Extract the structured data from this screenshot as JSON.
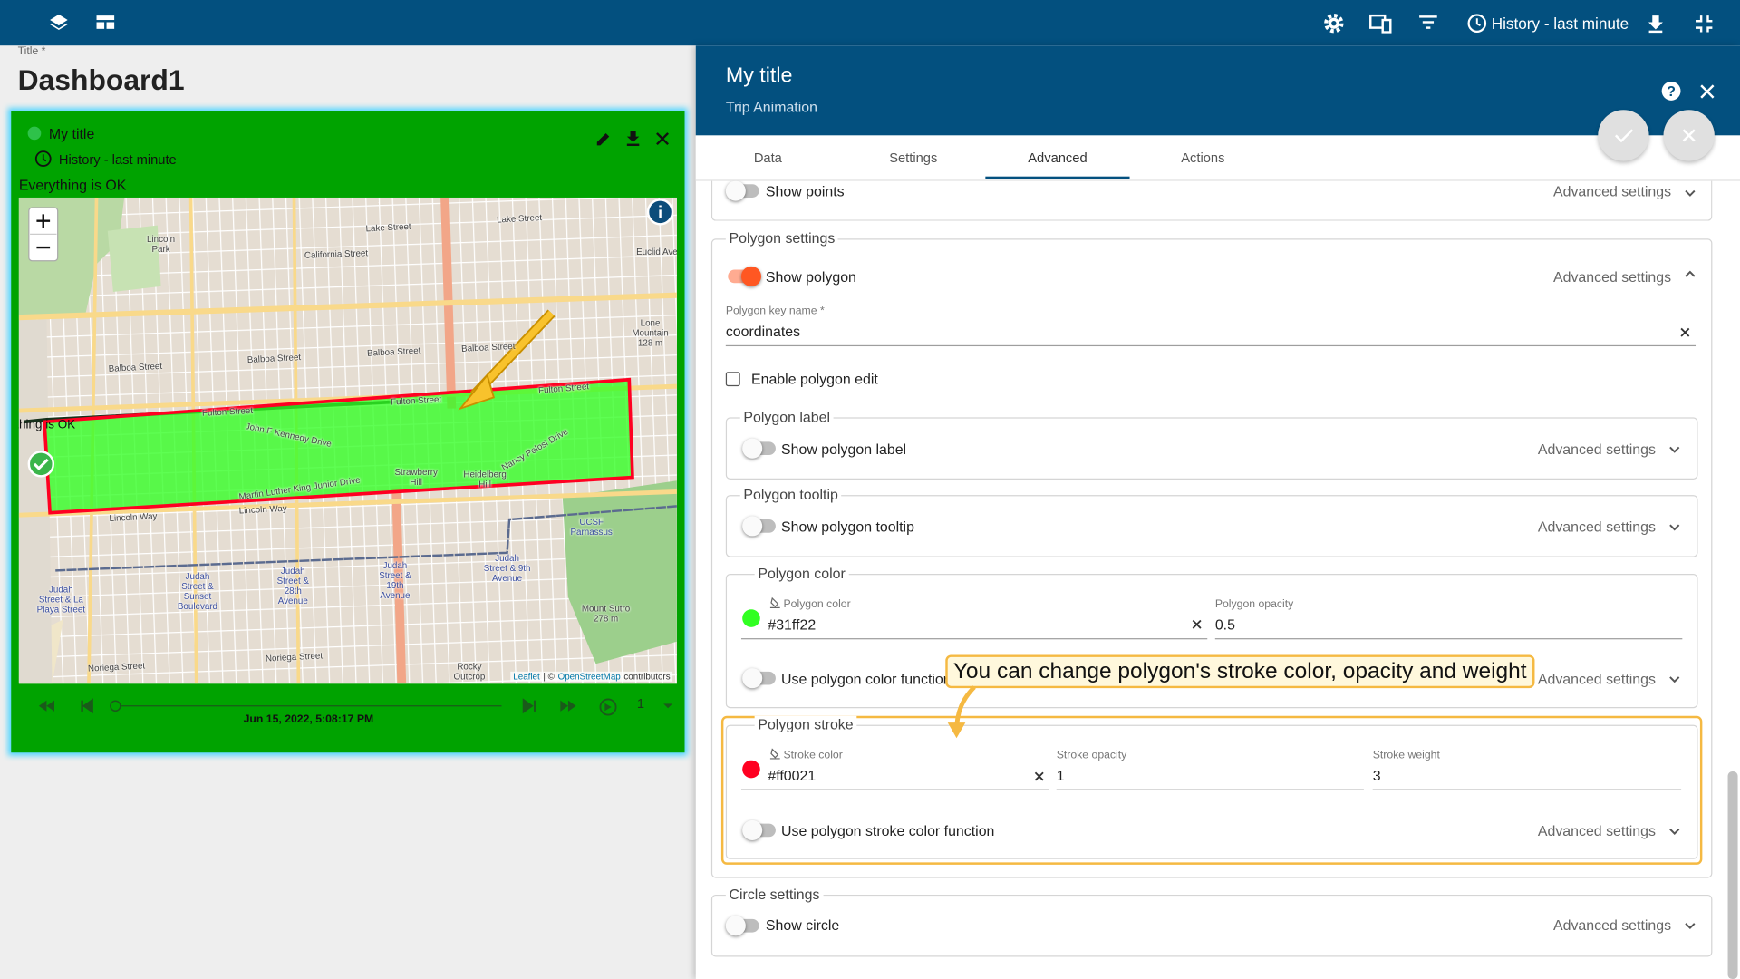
{
  "toolbar": {
    "timewindow": "History - last minute"
  },
  "dashboard": {
    "title_label": "Title *",
    "title": "Dashboard1"
  },
  "widget": {
    "title": "My title",
    "timewindow": "History - last minute",
    "status": "Everything is OK",
    "map_labels": [
      "Lincoln Park",
      "Lake Street",
      "Lake Street",
      "California Street",
      "Euclid Ave",
      "Balboa Street",
      "Balboa Street",
      "Balboa Street",
      "Balboa Street",
      "Fulton Street",
      "Fulton Street",
      "Fulton Street",
      "John F Kennedy Drive",
      "Martin Luther King Junior Drive",
      "Lincoln Way",
      "Lincoln Way",
      "Strawberry Hill",
      "Heidelberg Hill",
      "Nancy Pelosi Drive",
      "UCSF Parnassus",
      "Lone Mountain 128 m",
      "Judah Street & La Playa Street",
      "Judah Street & Sunset Boulevard",
      "Judah Street & 28th Avenue",
      "Judah Street & 19th Avenue",
      "Judah Street & 9th Avenue",
      "Mount Sutro 278 m",
      "Noriega Street",
      "Noriega Street",
      "Rocky Outcrop"
    ],
    "attribution": [
      "Leaflet",
      "| ©",
      "OpenStreetMap",
      "contributors"
    ],
    "timestamp": "Jun 15, 2022, 5:08:17 PM",
    "speed": "1"
  },
  "panel": {
    "title": "My title",
    "subtitle": "Trip Animation",
    "tabs": [
      "Data",
      "Settings",
      "Advanced",
      "Actions"
    ],
    "points": {
      "toggle": "Show points",
      "advanced": "Advanced settings"
    },
    "polygon": {
      "title": "Polygon settings",
      "toggle": "Show polygon",
      "advanced": "Advanced settings",
      "key_label": "Polygon key name *",
      "key_value": "coordinates",
      "edit": "Enable polygon edit",
      "label_group": {
        "title": "Polygon label",
        "toggle": "Show polygon label",
        "advanced": "Advanced settings"
      },
      "tooltip_group": {
        "title": "Polygon tooltip",
        "toggle": "Show polygon tooltip",
        "advanced": "Advanced settings"
      },
      "color_group": {
        "title": "Polygon color",
        "color_label": "Polygon color",
        "color_value": "#31ff22",
        "opacity_label": "Polygon opacity",
        "opacity_value": "0.5",
        "toggle": "Use polygon color function",
        "advanced": "Advanced settings"
      },
      "stroke_group": {
        "title": "Polygon stroke",
        "color_label": "Stroke color",
        "color_value": "#ff0021",
        "opacity_label": "Stroke opacity",
        "opacity_value": "1",
        "weight_label": "Stroke weight",
        "weight_value": "3",
        "toggle": "Use polygon stroke color function",
        "advanced": "Advanced settings"
      }
    },
    "circle": {
      "title": "Circle settings",
      "toggle": "Show circle",
      "advanced": "Advanced settings"
    }
  },
  "hint": "You can change polygon's stroke color, opacity and weight"
}
